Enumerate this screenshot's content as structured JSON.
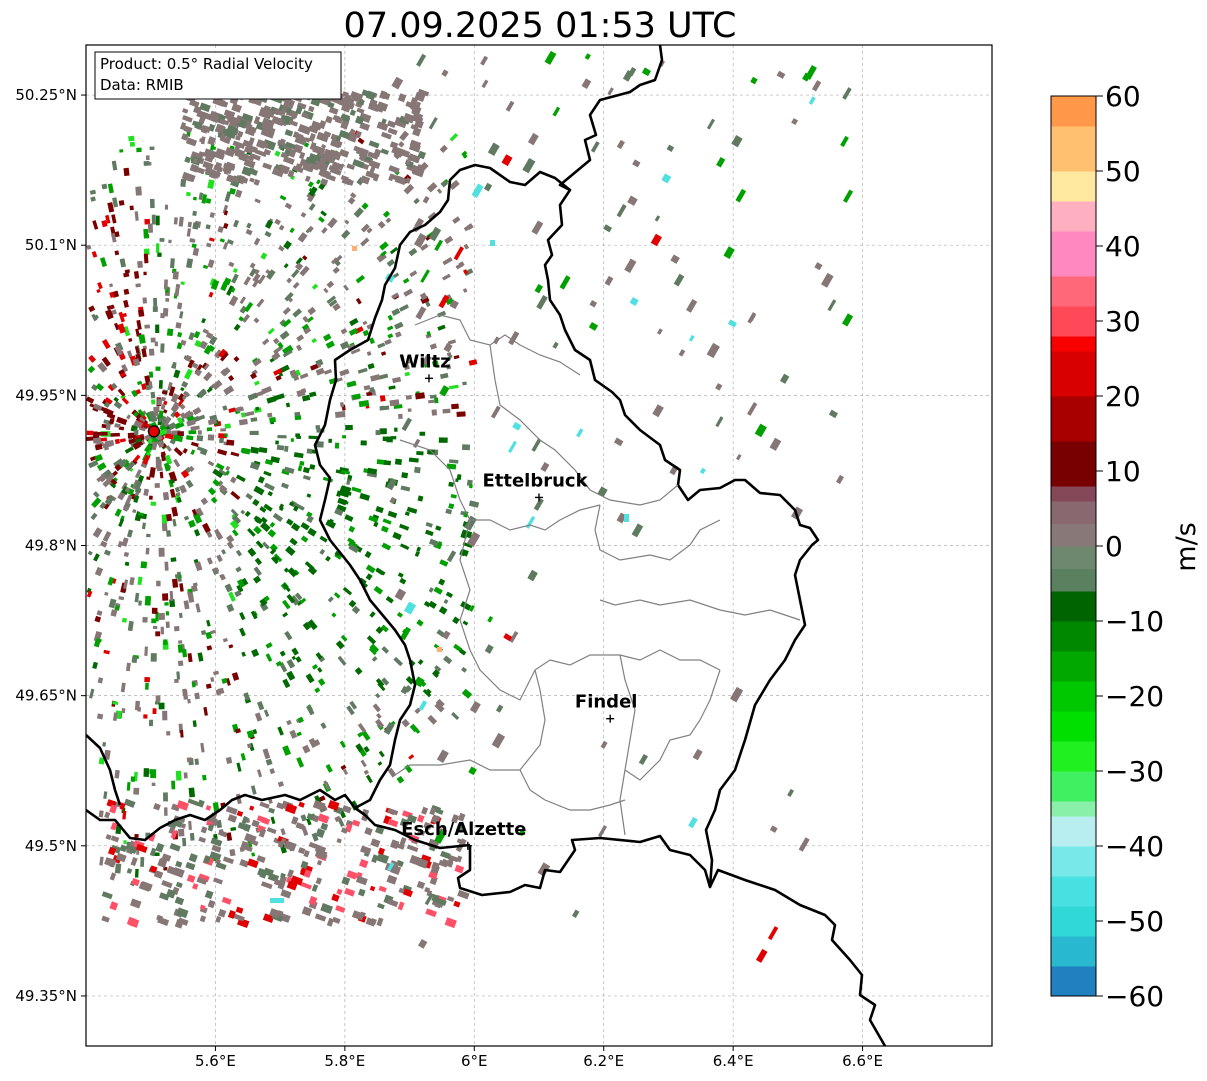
{
  "title": "07.09.2025 01:53 UTC",
  "info_box": {
    "product": "Product: 0.5° Radial Velocity",
    "data": "Data: RMIB"
  },
  "lat_ticks": [
    {
      "value": 50.25,
      "label": "50.25°N"
    },
    {
      "value": 50.1,
      "label": "50.1°N"
    },
    {
      "value": 49.95,
      "label": "49.95°N"
    },
    {
      "value": 49.8,
      "label": "49.8°N"
    },
    {
      "value": 49.65,
      "label": "49.65°N"
    },
    {
      "value": 49.5,
      "label": "49.5°N"
    },
    {
      "value": 49.35,
      "label": "49.35°N"
    }
  ],
  "lon_ticks": [
    {
      "value": 5.6,
      "label": "5.6°E"
    },
    {
      "value": 5.8,
      "label": "5.8°E"
    },
    {
      "value": 6.0,
      "label": "6°E"
    },
    {
      "value": 6.2,
      "label": "6.2°E"
    },
    {
      "value": 6.4,
      "label": "6.4°E"
    },
    {
      "value": 6.6,
      "label": "6.6°E"
    }
  ],
  "extent": {
    "lon_min": 5.4,
    "lon_max": 6.8,
    "lat_min": 49.3,
    "lat_max": 50.3
  },
  "radar": {
    "lon": 5.505,
    "lat": 49.914,
    "color": "#e00000"
  },
  "cities": [
    {
      "name": "Wiltz",
      "lon": 5.93,
      "lat": 49.967
    },
    {
      "name": "Ettelbruck",
      "lon": 6.1,
      "lat": 49.848
    },
    {
      "name": "Findel",
      "lon": 6.21,
      "lat": 49.627
    },
    {
      "name": "Esch/Alzette",
      "lon": 5.99,
      "lat": 49.5
    }
  ],
  "colorbar": {
    "label": "m/s",
    "vmin": -60,
    "vmax": 60,
    "ticks": [
      {
        "value": 60,
        "label": "60"
      },
      {
        "value": 50,
        "label": "50"
      },
      {
        "value": 40,
        "label": "40"
      },
      {
        "value": 30,
        "label": "30"
      },
      {
        "value": 20,
        "label": "20"
      },
      {
        "value": 10,
        "label": "10"
      },
      {
        "value": 0,
        "label": "0"
      },
      {
        "value": -10,
        "label": "−10"
      },
      {
        "value": -20,
        "label": "−20"
      },
      {
        "value": -30,
        "label": "−30"
      },
      {
        "value": -40,
        "label": "−40"
      },
      {
        "value": -50,
        "label": "−50"
      },
      {
        "value": -60,
        "label": "−60"
      }
    ],
    "segments": [
      {
        "from": -60,
        "to": -56,
        "color": "#2080c0"
      },
      {
        "from": -56,
        "to": -52,
        "color": "#28b8d0"
      },
      {
        "from": -52,
        "to": -48,
        "color": "#30d8d8"
      },
      {
        "from": -48,
        "to": -44,
        "color": "#48e0e0"
      },
      {
        "from": -44,
        "to": -40,
        "color": "#78e8e8"
      },
      {
        "from": -40,
        "to": -36,
        "color": "#b8eef0"
      },
      {
        "from": -36,
        "to": -34,
        "color": "#88f0a8"
      },
      {
        "from": -34,
        "to": -30,
        "color": "#40f060"
      },
      {
        "from": -30,
        "to": -26,
        "color": "#20f020"
      },
      {
        "from": -26,
        "to": -22,
        "color": "#00e000"
      },
      {
        "from": -22,
        "to": -18,
        "color": "#00c800"
      },
      {
        "from": -18,
        "to": -14,
        "color": "#00a800"
      },
      {
        "from": -14,
        "to": -10,
        "color": "#008800"
      },
      {
        "from": -10,
        "to": -6,
        "color": "#006400"
      },
      {
        "from": -6,
        "to": -3,
        "color": "#5a8060"
      },
      {
        "from": -3,
        "to": 0,
        "color": "#6e8870"
      },
      {
        "from": 0,
        "to": 3,
        "color": "#887878"
      },
      {
        "from": 3,
        "to": 6,
        "color": "#8a6870"
      },
      {
        "from": 6,
        "to": 8,
        "color": "#844858"
      },
      {
        "from": 8,
        "to": 14,
        "color": "#780000"
      },
      {
        "from": 14,
        "to": 20,
        "color": "#a80000"
      },
      {
        "from": 20,
        "to": 26,
        "color": "#d80000"
      },
      {
        "from": 26,
        "to": 28,
        "color": "#f80000"
      },
      {
        "from": 28,
        "to": 32,
        "color": "#ff4858"
      },
      {
        "from": 32,
        "to": 36,
        "color": "#ff6878"
      },
      {
        "from": 36,
        "to": 42,
        "color": "#ff88c0"
      },
      {
        "from": 42,
        "to": 46,
        "color": "#ffb0c0"
      },
      {
        "from": 46,
        "to": 50,
        "color": "#ffe8a0"
      },
      {
        "from": 50,
        "to": 56,
        "color": "#ffc070"
      },
      {
        "from": 56,
        "to": 60,
        "color": "#ff9848"
      }
    ]
  },
  "echo_colors": {
    "gray": "#867676",
    "gray_green": "#607a62",
    "dark_green": "#006a00",
    "green": "#00a000",
    "bright_green": "#20e020",
    "dark_red": "#7a0000",
    "red": "#e00000",
    "pink": "#ff5068",
    "cyan": "#50e0e0",
    "orange": "#ffb070"
  },
  "borders": {
    "country_color": "#000000",
    "canton_color": "#808080"
  }
}
